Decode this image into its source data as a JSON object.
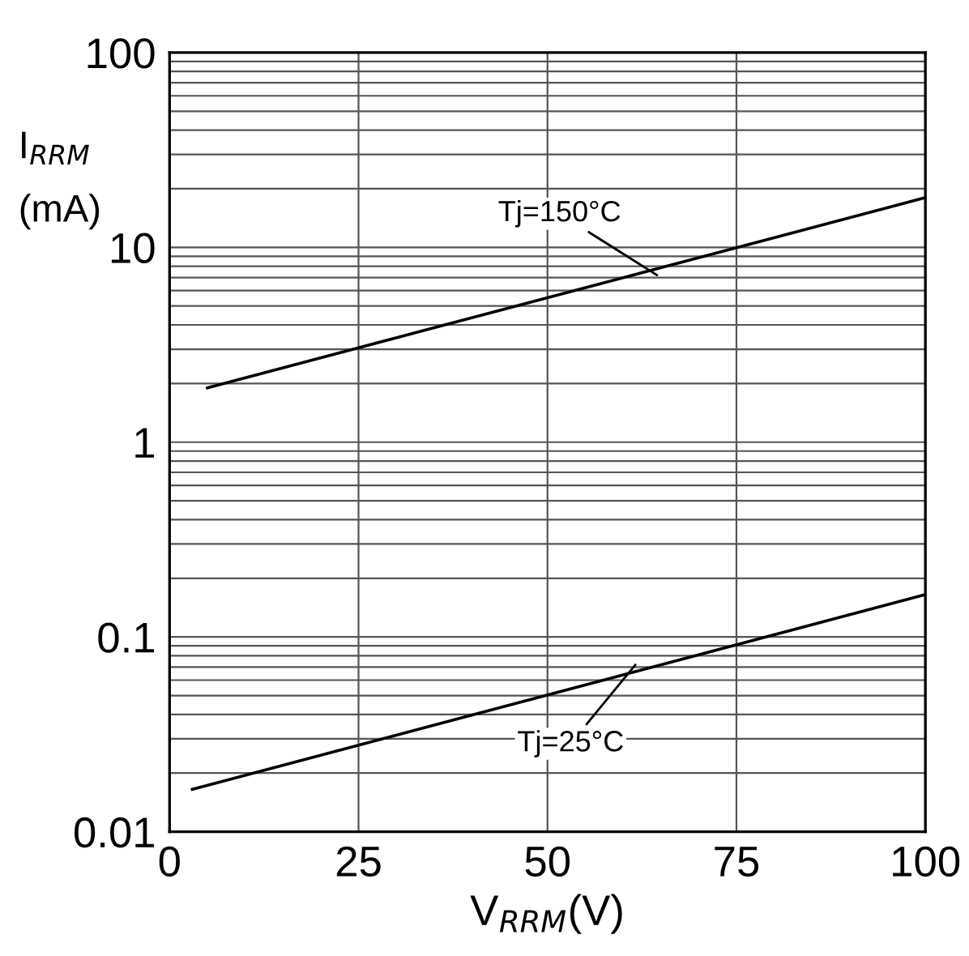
{
  "chart_data": {
    "type": "line",
    "xlabel": "V$_{RRM}$(V)",
    "ylabel": "I$_{RRM}$\n(mA)",
    "series": [
      {
        "color": "#000000",
        "x": [
          5,
          100
        ],
        "values": [
          1.9,
          18
        ]
      },
      {
        "color": "#000000",
        "x": [
          3,
          100
        ],
        "values": [
          0.0165,
          0.165
        ]
      }
    ],
    "annotations": [
      {
        "text": "Tj=150°C",
        "x": 65,
        "y": 7
      },
      {
        "text": "Tj=25°C",
        "x": 62,
        "y": 0.075
      }
    ],
    "log": "y",
    "xlim": [
      0,
      100
    ],
    "ylim": [
      0.01,
      100
    ],
    "xticks": [
      0,
      25,
      50,
      75,
      100
    ],
    "yticks": [
      0.01,
      0.1,
      1,
      10,
      100
    ],
    "grid": true,
    "line_style": "solid",
    "marker": "none"
  }
}
